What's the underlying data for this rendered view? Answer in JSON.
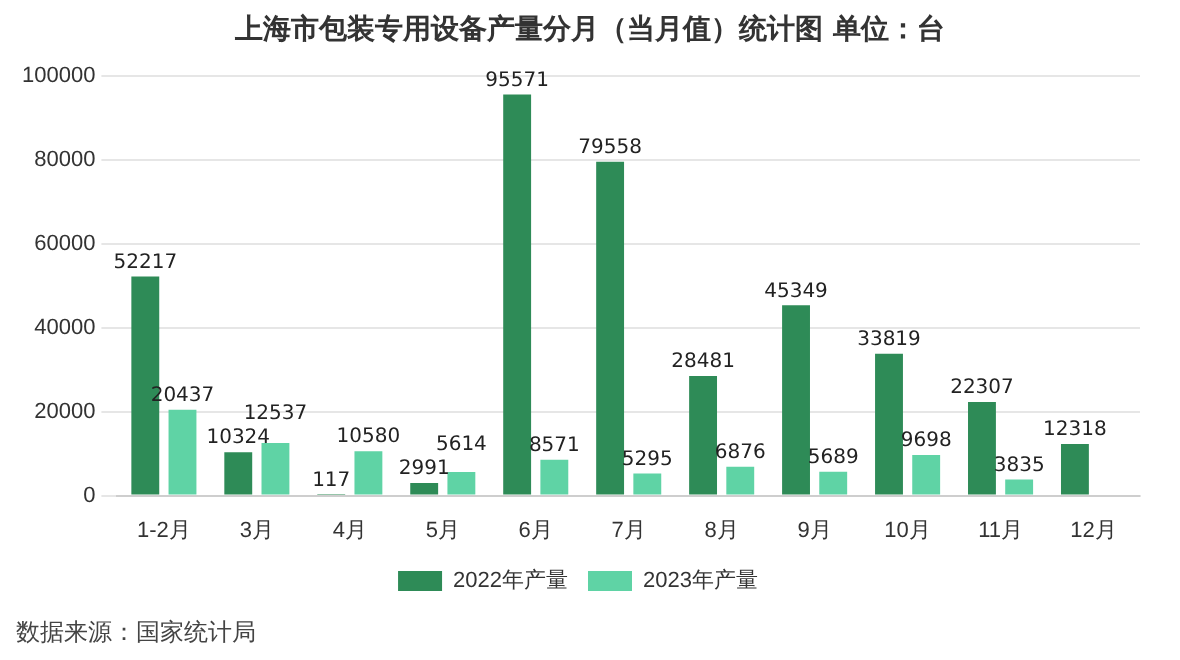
{
  "chart_data": {
    "type": "bar",
    "title": "上海市包装专用设备产量分月（当月值）统计图 单位：台",
    "categories": [
      "1-2月",
      "3月",
      "4月",
      "5月",
      "6月",
      "7月",
      "8月",
      "9月",
      "10月",
      "11月",
      "12月"
    ],
    "series": [
      {
        "name": "2022年产量",
        "color": "#2e8b57",
        "values": [
          52217,
          10324,
          117,
          2991,
          95571,
          79558,
          28481,
          45349,
          33819,
          22307,
          12318
        ]
      },
      {
        "name": "2023年产量",
        "color": "#5fd3a5",
        "values": [
          20437,
          12537,
          10580,
          5614,
          8571,
          5295,
          6876,
          5689,
          9698,
          3835,
          null
        ]
      }
    ],
    "ylim": [
      0,
      100000
    ],
    "yticks": [
      0,
      20000,
      40000,
      60000,
      80000,
      100000
    ],
    "grid": "y",
    "legend": "bottom",
    "data_labels": true,
    "annotations": [
      "数据来源：国家统计局"
    ]
  }
}
